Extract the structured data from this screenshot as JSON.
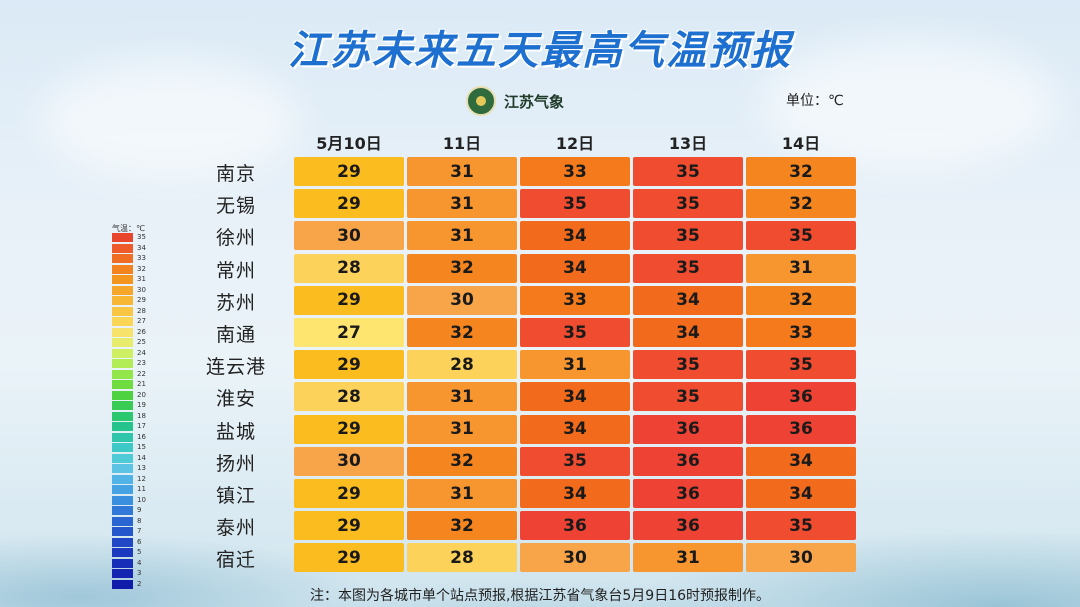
{
  "title": "江苏未来五天最高气温预报",
  "logo_text": "江苏气象",
  "unit_label": "单位：℃",
  "footnote": "注：本图为各城市单个站点预报,根据江苏省气象台5月9日16时预报制作。",
  "legend": {
    "title": "气温：℃",
    "levels": [
      35,
      34,
      33,
      32,
      31,
      30,
      29,
      28,
      27,
      26,
      25,
      24,
      23,
      22,
      21,
      20,
      19,
      18,
      17,
      16,
      15,
      14,
      13,
      12,
      11,
      10,
      9,
      8,
      7,
      6,
      5,
      4,
      3,
      2
    ],
    "colors": [
      "#e8452c",
      "#ee5a2a",
      "#f06e24",
      "#f3821f",
      "#f4951e",
      "#f6a628",
      "#f8b733",
      "#f9c643",
      "#fbd554",
      "#f7e36c",
      "#e8ec6c",
      "#cfef62",
      "#b2ec56",
      "#92e64a",
      "#6fdc40",
      "#4fd23f",
      "#39cc55",
      "#2cc870",
      "#25c48d",
      "#2fc6ac",
      "#3dc9c5",
      "#4fcbd8",
      "#5dc3e4",
      "#52b4e6",
      "#45a2e3",
      "#3a8fdf",
      "#3179d8",
      "#2966d2",
      "#2456cc",
      "#1f47c6",
      "#1b3abf",
      "#172fb8",
      "#1425b1",
      "#101caa"
    ]
  },
  "colors": {
    "27": "#fde56f",
    "28": "#fdd25a",
    "29": "#fbbc1f",
    "30": "#f8a54a",
    "31": "#f7962e",
    "32": "#f5861f",
    "33": "#f47a1b",
    "34": "#f26a1b",
    "35": "#ef4c30",
    "36": "#ee4334"
  },
  "chart_data": {
    "type": "table",
    "title": "江苏未来五天最高气温预报",
    "dates": [
      "5月10日",
      "11日",
      "12日",
      "13日",
      "14日"
    ],
    "cities": [
      "南京",
      "无锡",
      "徐州",
      "常州",
      "苏州",
      "南通",
      "连云港",
      "淮安",
      "盐城",
      "扬州",
      "镇江",
      "泰州",
      "宿迁"
    ],
    "values": [
      [
        29,
        31,
        33,
        35,
        32
      ],
      [
        29,
        31,
        35,
        35,
        32
      ],
      [
        30,
        31,
        34,
        35,
        35
      ],
      [
        28,
        32,
        34,
        35,
        31
      ],
      [
        29,
        30,
        33,
        34,
        32
      ],
      [
        27,
        32,
        35,
        34,
        33
      ],
      [
        29,
        28,
        31,
        35,
        35
      ],
      [
        28,
        31,
        34,
        35,
        36
      ],
      [
        29,
        31,
        34,
        36,
        36
      ],
      [
        30,
        32,
        35,
        36,
        34
      ],
      [
        29,
        31,
        34,
        36,
        34
      ],
      [
        29,
        32,
        36,
        36,
        35
      ],
      [
        29,
        28,
        30,
        31,
        30
      ]
    ],
    "unit": "℃"
  }
}
